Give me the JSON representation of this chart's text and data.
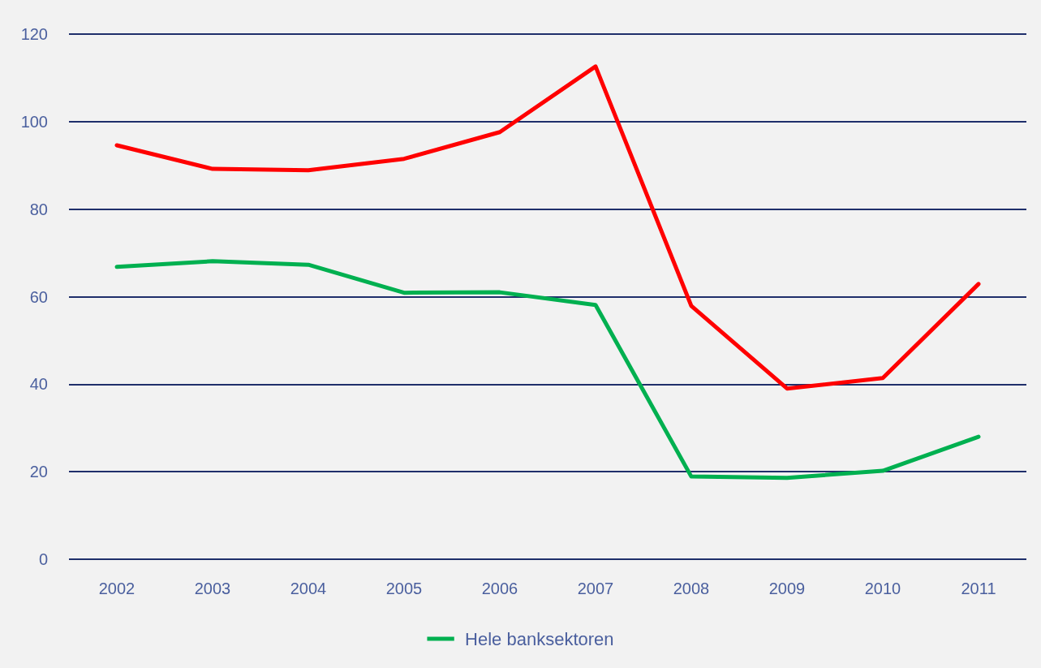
{
  "chart_data": {
    "type": "line",
    "categories": [
      "2002",
      "2003",
      "2004",
      "2005",
      "2006",
      "2007",
      "2008",
      "2009",
      "2010",
      "2011"
    ],
    "series": [
      {
        "color": "#ff0000",
        "values": [
          94.6,
          89.2,
          88.9,
          91.5,
          97.6,
          112.6,
          57.9,
          39.0,
          41.4,
          62.9
        ]
      },
      {
        "name": "Hele banksektoren",
        "color": "#00b050",
        "values": [
          66.8,
          68.1,
          67.3,
          60.9,
          61.0,
          58.1,
          18.9,
          18.6,
          20.2,
          28.0
        ]
      }
    ],
    "ylim": [
      0,
      120
    ],
    "yticks": [
      0,
      20,
      40,
      60,
      80,
      100,
      120
    ],
    "grid": "y",
    "legend": "bottom",
    "marker": "none",
    "line_style": "solid"
  }
}
